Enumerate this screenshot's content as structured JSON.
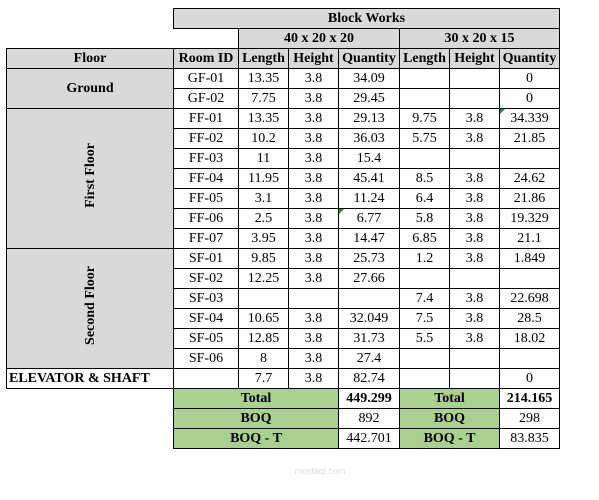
{
  "title": "Block Works",
  "groups": {
    "g1": "40 x 20 x 20",
    "g2": "30 x 20 x 15"
  },
  "headers": {
    "floor": "Floor",
    "room_id": "Room ID",
    "length": "Length",
    "height": "Height",
    "quantity": "Quantity",
    "length2": "Length",
    "height2": "Height",
    "quantity2": "Quantity"
  },
  "floors": {
    "ground": "Ground",
    "first": "First Floor",
    "second": "Second Floor",
    "elevator": "ELEVATOR & SHAFT"
  },
  "rows": [
    {
      "id": "GF-01",
      "l1": "13.35",
      "h1": "3.8",
      "q1": "34.09",
      "l2": "",
      "h2": "",
      "q2": "0"
    },
    {
      "id": "GF-02",
      "l1": "7.75",
      "h1": "3.8",
      "q1": "29.45",
      "l2": "",
      "h2": "",
      "q2": "0"
    },
    {
      "id": "FF-01",
      "l1": "13.35",
      "h1": "3.8",
      "q1": "29.13",
      "l2": "9.75",
      "h2": "3.8",
      "q2": "34.339"
    },
    {
      "id": "FF-02",
      "l1": "10.2",
      "h1": "3.8",
      "q1": "36.03",
      "l2": "5.75",
      "h2": "3.8",
      "q2": "21.85"
    },
    {
      "id": "FF-03",
      "l1": "11",
      "h1": "3.8",
      "q1": "15.4",
      "l2": "",
      "h2": "",
      "q2": ""
    },
    {
      "id": "FF-04",
      "l1": "11.95",
      "h1": "3.8",
      "q1": "45.41",
      "l2": "8.5",
      "h2": "3.8",
      "q2": "24.62"
    },
    {
      "id": "FF-05",
      "l1": "3.1",
      "h1": "3.8",
      "q1": "11.24",
      "l2": "6.4",
      "h2": "3.8",
      "q2": "21.86"
    },
    {
      "id": "FF-06",
      "l1": "2.5",
      "h1": "3.8",
      "q1": "6.77",
      "l2": "5.8",
      "h2": "3.8",
      "q2": "19.329"
    },
    {
      "id": "FF-07",
      "l1": "3.95",
      "h1": "3.8",
      "q1": "14.47",
      "l2": "6.85",
      "h2": "3.8",
      "q2": "21.1"
    },
    {
      "id": "SF-01",
      "l1": "9.85",
      "h1": "3.8",
      "q1": "25.73",
      "l2": "1.2",
      "h2": "3.8",
      "q2": "1.849"
    },
    {
      "id": "SF-02",
      "l1": "12.25",
      "h1": "3.8",
      "q1": "27.66",
      "l2": "",
      "h2": "",
      "q2": ""
    },
    {
      "id": "SF-03",
      "l1": "",
      "h1": "",
      "q1": "",
      "l2": "7.4",
      "h2": "3.8",
      "q2": "22.698"
    },
    {
      "id": "SF-04",
      "l1": "10.65",
      "h1": "3.8",
      "q1": "32.049",
      "l2": "7.5",
      "h2": "3.8",
      "q2": "28.5"
    },
    {
      "id": "SF-05",
      "l1": "12.85",
      "h1": "3.8",
      "q1": "31.73",
      "l2": "5.5",
      "h2": "3.8",
      "q2": "18.02"
    },
    {
      "id": "SF-06",
      "l1": "8",
      "h1": "3.8",
      "q1": "27.4",
      "l2": "",
      "h2": "",
      "q2": ""
    },
    {
      "id": "",
      "l1": "7.7",
      "h1": "3.8",
      "q1": "82.74",
      "l2": "",
      "h2": "",
      "q2": "0"
    }
  ],
  "summary": {
    "total_label": "Total",
    "total1": "449.299",
    "total2": "214.165",
    "boq_label": "BOQ",
    "boq1": "892",
    "boq2": "298",
    "boqt_label": "BOQ - T",
    "boqt1": "442.701",
    "boqt2": "83.835"
  },
  "watermark": "mostaql.com"
}
